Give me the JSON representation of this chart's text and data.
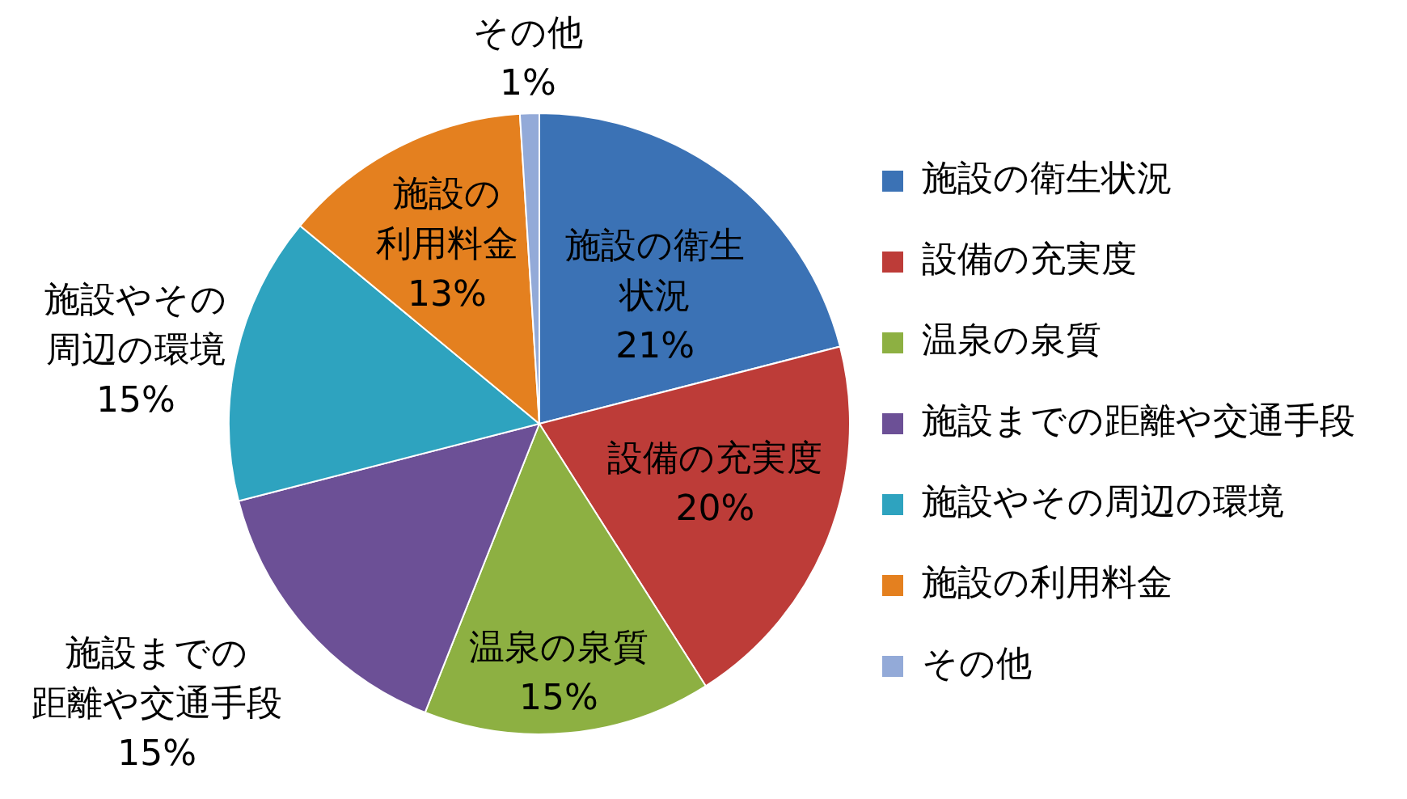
{
  "chart_data": {
    "type": "pie",
    "categories": [
      "施設の衛生状況",
      "設備の充実度",
      "温泉の泉質",
      "施設までの距離や交通手段",
      "施設やその周辺の環境",
      "施設の利用料金",
      "その他"
    ],
    "values": [
      21,
      20,
      15,
      15,
      15,
      13,
      1
    ],
    "value_labels": [
      "21%",
      "20%",
      "15%",
      "15%",
      "15%",
      "13%",
      "1%"
    ],
    "colors": [
      "#3b72b5",
      "#bd3c38",
      "#8db042",
      "#6c5096",
      "#2ea3bf",
      "#e4801f",
      "#93aad8"
    ],
    "legend": "right"
  }
}
